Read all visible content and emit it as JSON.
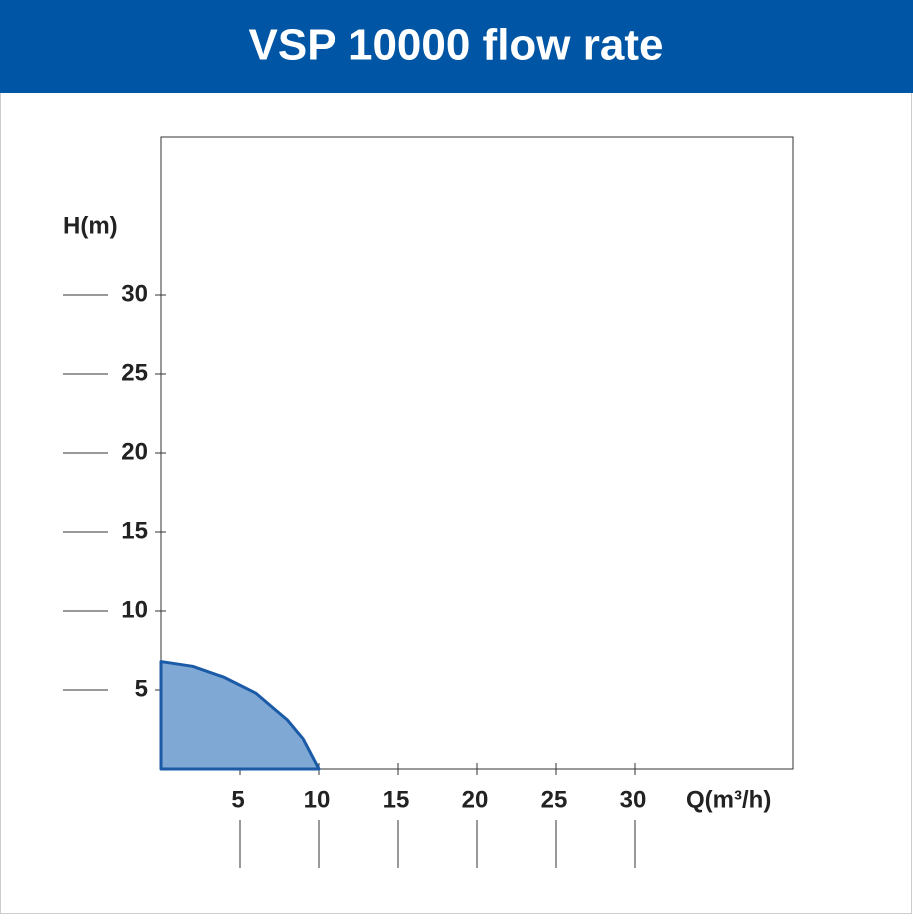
{
  "chart_data": {
    "type": "area",
    "title": "VSP 10000 flow rate",
    "y_label": "H(m)",
    "x_label": "Q(m³/h)",
    "x": [
      0,
      2,
      4,
      6,
      8,
      9,
      10
    ],
    "values": [
      6.8,
      6.5,
      5.8,
      4.8,
      3.1,
      1.9,
      0
    ],
    "color": "#1a5aa6",
    "fill": "#7fa8d4",
    "xlim": [
      0,
      40
    ],
    "ylim": [
      0,
      40
    ],
    "xticks": [
      5,
      10,
      15,
      20,
      25,
      30
    ],
    "yticks": [
      5,
      10,
      15,
      20,
      25,
      30
    ]
  }
}
